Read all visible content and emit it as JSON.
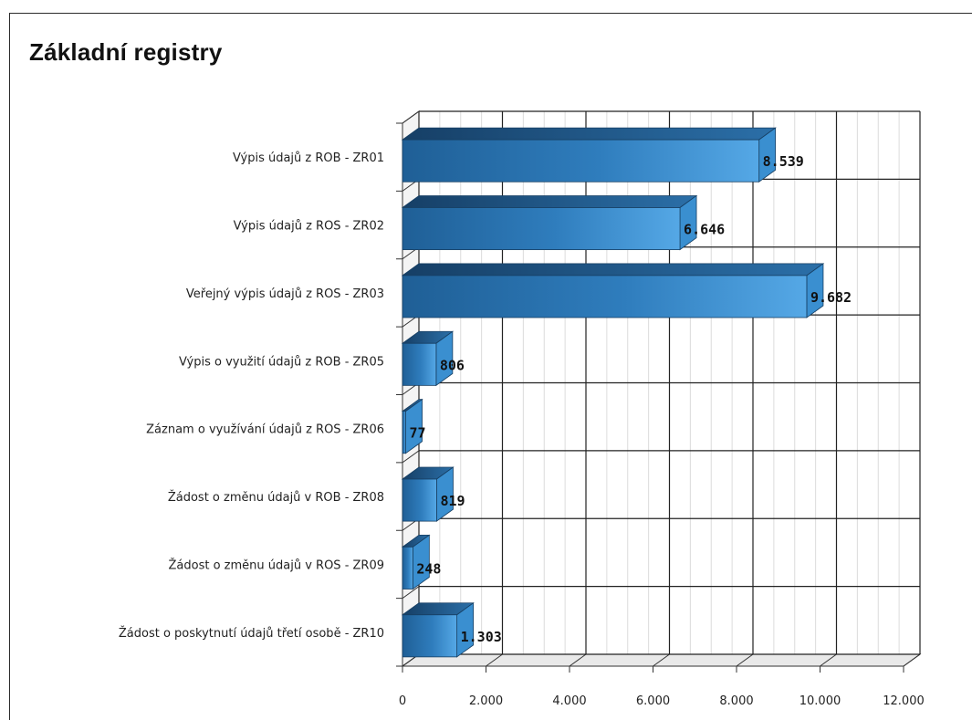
{
  "chart_data": {
    "type": "bar",
    "orientation": "horizontal",
    "style": "3d",
    "title": "Základní registry",
    "categories": [
      "Výpis údajů z ROB - ZR01",
      "Výpis údajů z ROS - ZR02",
      "Veřejný výpis údajů z ROS - ZR03",
      "Výpis o využití údajů z ROB - ZR05",
      "Záznam o využívání údajů z ROS - ZR06",
      "Žádost o změnu údajů v ROB - ZR08",
      "Žádost o změnu údajů v ROS - ZR09",
      "Žádost o poskytnutí údajů třetí osobě - ZR10"
    ],
    "values": [
      8539,
      6646,
      9682,
      806,
      77,
      819,
      248,
      1303
    ],
    "value_labels": [
      "8.539",
      "6.646",
      "9.682",
      "806",
      "77",
      "819",
      "248",
      "1.303"
    ],
    "xlim": [
      0,
      12000
    ],
    "major_ticks": [
      0,
      2000,
      4000,
      6000,
      8000,
      10000,
      12000
    ],
    "tick_labels": [
      "0",
      "2.000",
      "4.000",
      "6.000",
      "8.000",
      "10.000",
      "12.000"
    ],
    "minor_tick_step": 500,
    "grid": true,
    "legend": "none",
    "xlabel": "",
    "ylabel": "",
    "bar_color": "#3a8fd0",
    "bar_dark_color": "#1e5f96",
    "bar_light_color": "#5aaeea"
  }
}
